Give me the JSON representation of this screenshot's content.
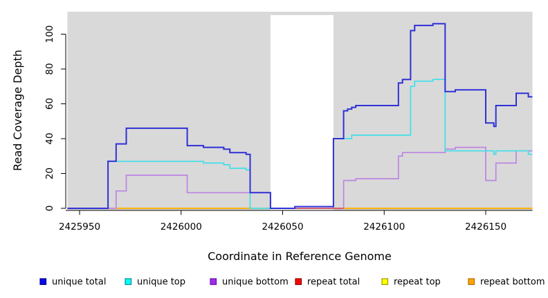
{
  "chart_data": {
    "type": "line",
    "step": true,
    "title": "",
    "xlabel": "Coordinate in Reference Genome",
    "ylabel": "Read Coverage Depth",
    "xlim": [
      2425944,
      2426173
    ],
    "ylim": [
      0,
      110
    ],
    "x_ticks": [
      2425950,
      2426000,
      2426050,
      2426100,
      2426150
    ],
    "y_ticks": [
      0,
      20,
      40,
      60,
      80,
      100
    ],
    "grid": false,
    "plot_background": "#d9d9d9",
    "gap_region": {
      "x_range": [
        2426044,
        2426075
      ],
      "fill": "#ffffff"
    },
    "series": [
      {
        "name": "repeat top",
        "key": "repeat-top",
        "color": "#ffff00",
        "width": 1.7,
        "x_end": 2426173,
        "points": [
          [
            2425944,
            0
          ]
        ]
      },
      {
        "name": "repeat bottom",
        "key": "repeat-bottom",
        "color": "#ffa500",
        "width": 1.8,
        "x_end": 2426173,
        "points": [
          [
            2425944,
            0
          ]
        ]
      },
      {
        "name": "unique bottom",
        "key": "unique-bottom",
        "color": "#bd84e2",
        "width": 1.7,
        "x_end": 2426173,
        "points": [
          [
            2425944,
            0
          ],
          [
            2425968,
            10
          ],
          [
            2425973,
            19
          ],
          [
            2426003,
            9
          ],
          [
            2426044,
            0
          ],
          [
            2426080,
            16
          ],
          [
            2426086,
            17
          ],
          [
            2426107,
            30
          ],
          [
            2426109,
            32
          ],
          [
            2426130,
            34
          ],
          [
            2426135,
            35
          ],
          [
            2426150,
            16
          ],
          [
            2426155,
            26
          ],
          [
            2426165,
            33
          ]
        ]
      },
      {
        "name": "unique top",
        "key": "unique-top",
        "color": "#3fdfe9",
        "width": 1.7,
        "x_end": 2426173,
        "points": [
          [
            2425944,
            0
          ],
          [
            2425964,
            27
          ],
          [
            2426011,
            26
          ],
          [
            2426021,
            25
          ],
          [
            2426024,
            23
          ],
          [
            2426032,
            22
          ],
          [
            2426034,
            0
          ],
          [
            2426075,
            40
          ],
          [
            2426084,
            42
          ],
          [
            2426113,
            70
          ],
          [
            2426115,
            73
          ],
          [
            2426124,
            74
          ],
          [
            2426130,
            33
          ],
          [
            2426154,
            31
          ],
          [
            2426155,
            33
          ],
          [
            2426171,
            31
          ]
        ]
      },
      {
        "name": "repeat total",
        "key": "repeat-total",
        "color": "#e14b5a",
        "width": 1.7,
        "x_end": 2426080,
        "points": [
          [
            2426056,
            0
          ]
        ]
      },
      {
        "name": "unique total",
        "key": "unique-total",
        "color": "#2f2fd8",
        "width": 2.0,
        "x_end": 2426173,
        "points": [
          [
            2425944,
            0
          ],
          [
            2425964,
            27
          ],
          [
            2425968,
            37
          ],
          [
            2425973,
            46
          ],
          [
            2426003,
            36
          ],
          [
            2426011,
            35
          ],
          [
            2426021,
            34
          ],
          [
            2426024,
            32
          ],
          [
            2426032,
            31
          ],
          [
            2426034,
            9
          ],
          [
            2426044,
            0
          ],
          [
            2426056,
            1
          ],
          [
            2426075,
            40
          ],
          [
            2426080,
            56
          ],
          [
            2426082,
            57
          ],
          [
            2426084,
            58
          ],
          [
            2426086,
            59
          ],
          [
            2426107,
            72
          ],
          [
            2426109,
            74
          ],
          [
            2426113,
            102
          ],
          [
            2426115,
            105
          ],
          [
            2426124,
            106
          ],
          [
            2426130,
            67
          ],
          [
            2426135,
            68
          ],
          [
            2426150,
            49
          ],
          [
            2426154,
            47
          ],
          [
            2426155,
            59
          ],
          [
            2426165,
            66
          ],
          [
            2426171,
            64
          ]
        ]
      }
    ],
    "legend": [
      {
        "label": "unique total",
        "fill": "#0808f0",
        "border": "#000080"
      },
      {
        "label": "unique top",
        "fill": "#00ffff",
        "border": "#008b8b"
      },
      {
        "label": "unique bottom",
        "fill": "#a12cec",
        "border": "#6a0dad"
      },
      {
        "label": "repeat total",
        "fill": "#ff0000",
        "border": "#8b0000"
      },
      {
        "label": "repeat top",
        "fill": "#ffff00",
        "border": "#999900"
      },
      {
        "label": "repeat bottom",
        "fill": "#ffa500",
        "border": "#b36b00"
      }
    ],
    "legend_position": "bottom"
  }
}
